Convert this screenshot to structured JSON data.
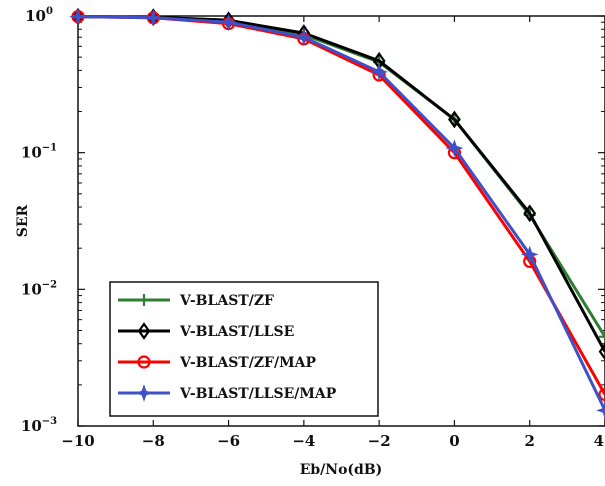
{
  "chart_data": {
    "type": "line",
    "xlabel": "Eb/No(dB)",
    "ylabel": "SER",
    "yscale": "log",
    "xlim": [
      -10,
      4
    ],
    "ylim": [
      0.001,
      1
    ],
    "x_ticks": [
      "−10",
      "−8",
      "−6",
      "−4",
      "−2",
      "0",
      "2",
      "4"
    ],
    "y_ticks": [
      {
        "base": "10",
        "exp": "0"
      },
      {
        "base": "10",
        "exp": "−1"
      },
      {
        "base": "10",
        "exp": "−2"
      },
      {
        "base": "10",
        "exp": "−3"
      }
    ],
    "legend_position": "bottom-left",
    "series": [
      {
        "name": "V-BLAST/ZF",
        "color": "#2e7d32",
        "marker": "plus",
        "x": [
          -10,
          -8,
          -6,
          -4,
          -2,
          0,
          2,
          4
        ],
        "y": [
          0.99,
          0.98,
          0.93,
          0.73,
          0.46,
          0.175,
          0.035,
          0.0045
        ]
      },
      {
        "name": "V-BLAST/LLSE",
        "color": "#000000",
        "marker": "diamond",
        "x": [
          -10,
          -8,
          -6,
          -4,
          -2,
          0,
          2,
          4
        ],
        "y": [
          0.99,
          0.98,
          0.93,
          0.75,
          0.47,
          0.175,
          0.036,
          0.0035
        ]
      },
      {
        "name": "V-BLAST/ZF/MAP",
        "color": "#ff0000",
        "marker": "circle",
        "x": [
          -10,
          -8,
          -6,
          -4,
          -2,
          0,
          2,
          4
        ],
        "y": [
          0.99,
          0.97,
          0.88,
          0.68,
          0.37,
          0.1,
          0.016,
          0.0017
        ]
      },
      {
        "name": "V-BLAST/LLSE/MAP",
        "color": "#3f51c8",
        "marker": "star",
        "x": [
          -10,
          -8,
          -6,
          -4,
          -2,
          0,
          2,
          4
        ],
        "y": [
          0.99,
          0.97,
          0.9,
          0.7,
          0.39,
          0.108,
          0.018,
          0.0013
        ]
      }
    ]
  }
}
